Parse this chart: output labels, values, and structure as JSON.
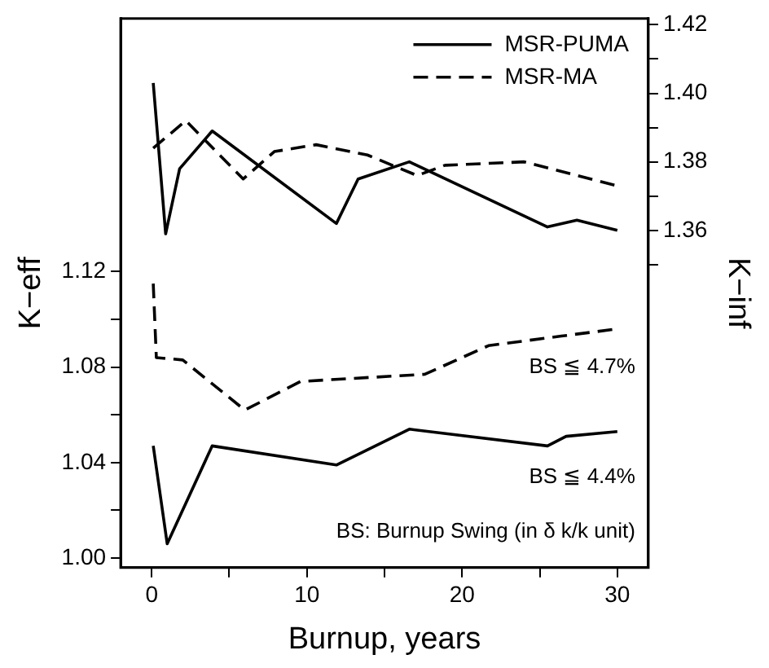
{
  "chart_data": {
    "type": "line",
    "xlabel": "Burnup, years",
    "ylabel": "K−eff",
    "y2label": "K−inf",
    "xlim": [
      -2,
      32
    ],
    "xticks": [
      0,
      {
        "value": 5,
        "label": null
      },
      10,
      {
        "value": 15,
        "label": null
      },
      20,
      {
        "value": 25,
        "label": null
      },
      30
    ],
    "ylim": [
      0.996,
      1.226
    ],
    "yticks": [
      {
        "value": 1,
        "label": "1.00"
      },
      {
        "value": 1.02,
        "label": null
      },
      1.04,
      {
        "value": 1.06,
        "label": null
      },
      1.08,
      {
        "value": 1.1,
        "label": null
      },
      1.12
    ],
    "y2lim": [
      1.2616,
      1.4218
    ],
    "y2ticks": [
      {
        "value": 1.35,
        "label": null
      },
      1.36,
      {
        "value": 1.37,
        "label": null
      },
      1.38,
      {
        "value": 1.39,
        "label": null
      },
      {
        "value": 1.4,
        "label": "1.40"
      },
      {
        "value": 1.41,
        "label": null
      },
      1.42
    ],
    "grid": false,
    "legend": "top right",
    "marker": "none",
    "series": [
      {
        "name": "MSR-PUMA",
        "color": "#000000",
        "axis": "y2",
        "line_style": "solid",
        "x": [
          0.1,
          0.9,
          1.8,
          3.9,
          11.9,
          13.3,
          16.6,
          25.5,
          27.4,
          30
        ],
        "values": [
          1.403,
          1.359,
          1.378,
          1.389,
          1.362,
          1.375,
          1.38,
          1.361,
          1.363,
          1.36
        ]
      },
      {
        "name": "MSR-MA",
        "color": "#000000",
        "axis": "y2",
        "line_style": "dashed",
        "x": [
          0.1,
          2.2,
          5.9,
          7.9,
          10.6,
          13.9,
          17.1,
          18.9,
          24,
          30
        ],
        "values": [
          1.384,
          1.392,
          1.375,
          1.383,
          1.385,
          1.382,
          1.376,
          1.379,
          1.38,
          1.373
        ]
      },
      {
        "color": "#000000",
        "axis": "y",
        "line_style": "dashed",
        "x": [
          0.1,
          0.3,
          2,
          6,
          9.6,
          17.6,
          21.7,
          26.4,
          30
        ],
        "values": [
          1.115,
          1.084,
          1.083,
          1.062,
          1.074,
          1.077,
          1.089,
          1.093,
          1.096
        ]
      },
      {
        "color": "#000000",
        "axis": "y",
        "line_style": "solid",
        "x": [
          0.1,
          1,
          3.9,
          11.9,
          16.6,
          25.5,
          26.7,
          30
        ],
        "values": [
          1.047,
          1.006,
          1.047,
          1.039,
          1.054,
          1.047,
          1.051,
          1.053
        ]
      }
    ],
    "annotations": [
      "BS ≦ 4.7%",
      "BS ≦ 4.4%",
      "BS: Burnup Swing (in δ k/k unit)"
    ]
  }
}
